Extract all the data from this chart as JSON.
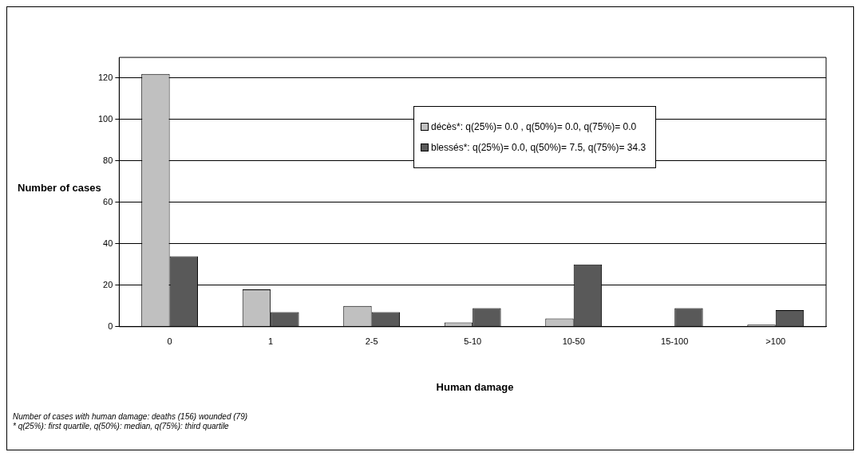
{
  "chart_data": {
    "type": "bar",
    "xlabel": "Human damage",
    "ylabel": "Number of cases",
    "categories": [
      "0",
      "1",
      "2-5",
      "5-10",
      "10-50",
      "15-100",
      ">100"
    ],
    "series": [
      {
        "name": "décès*: q(25%)= 0.0 , q(50%)= 0.0, q(75%)= 0.0",
        "color": "#c0c0c0",
        "values": [
          122,
          18,
          10,
          2,
          4,
          0,
          1
        ]
      },
      {
        "name": "blessés*: q(25%)= 0.0,  q(50%)= 7.5, q(75%)= 34.3",
        "color": "#595959",
        "values": [
          34,
          7,
          7,
          9,
          30,
          9,
          8
        ]
      }
    ],
    "ylim": [
      0,
      130
    ],
    "yticks": [
      0,
      20,
      40,
      60,
      80,
      100,
      120
    ],
    "grid": "y",
    "legend": "top right",
    "annotations": [
      "Number of cases with human damage: deaths (156) wounded (79)",
      "* q(25%): first quartile, q(50%): median, q(75%): third quartile"
    ]
  }
}
